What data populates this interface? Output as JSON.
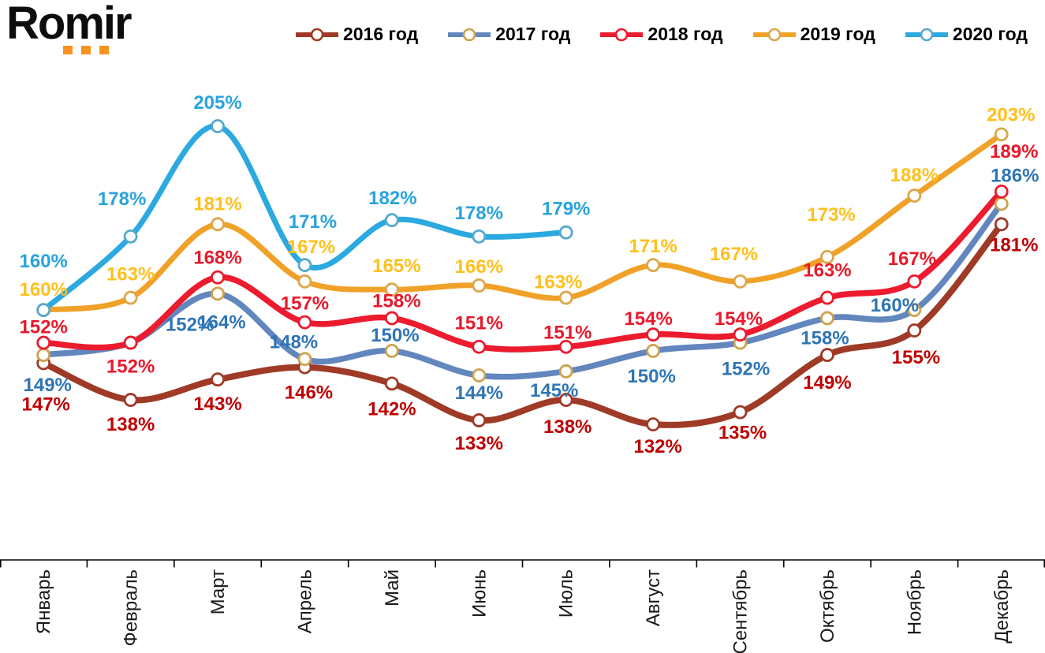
{
  "logo": {
    "brand": "Romir",
    "accent_color": "#F7941D"
  },
  "chart_data": {
    "type": "line",
    "title": "",
    "value_suffix": "%",
    "smooth": true,
    "markers": "circle-white-fill",
    "legend_position": "top",
    "grid": false,
    "y_axis_visible": false,
    "x_labels_rotation": -90,
    "ylim": [
      125,
      212
    ],
    "categories": [
      "Январь",
      "Февраль",
      "Март",
      "Апрель",
      "Май",
      "Июнь",
      "Июль",
      "Август",
      "Сентябрь",
      "Октябрь",
      "Ноябрь",
      "Декабрь"
    ],
    "series": [
      {
        "name": "2016 год",
        "line_color": "#9E3A26",
        "marker_outline": "#9E3A26",
        "label_color": "#C00000",
        "values": [
          147,
          138,
          143,
          146,
          142,
          133,
          138,
          132,
          135,
          149,
          155,
          181
        ]
      },
      {
        "name": "2017 год",
        "line_color": "#6286BE",
        "marker_outline": "#CDA24D",
        "label_color": "#2E75B6",
        "values": [
          149,
          152,
          164,
          148,
          150,
          144,
          145,
          150,
          152,
          158,
          160,
          186
        ]
      },
      {
        "name": "2018 год",
        "line_color": "#EC1B2E",
        "marker_outline": "#EC1B2E",
        "label_color": "#E8192C",
        "values": [
          152,
          152,
          168,
          157,
          158,
          151,
          151,
          154,
          154,
          163,
          167,
          189
        ]
      },
      {
        "name": "2019 год",
        "line_color": "#F0A127",
        "marker_outline": "#DDA64A",
        "label_color": "#FFC01E",
        "values": [
          160,
          163,
          181,
          167,
          165,
          166,
          163,
          171,
          167,
          173,
          188,
          203
        ]
      },
      {
        "name": "2020 год",
        "line_color": "#2BA9E0",
        "marker_outline": "#55A8CE",
        "label_color": "#29A3DC",
        "values": [
          160,
          178,
          205,
          171,
          182,
          178,
          179
        ]
      }
    ],
    "x_axis_color": "#000000",
    "x_label_color": "#1a1a1a"
  }
}
